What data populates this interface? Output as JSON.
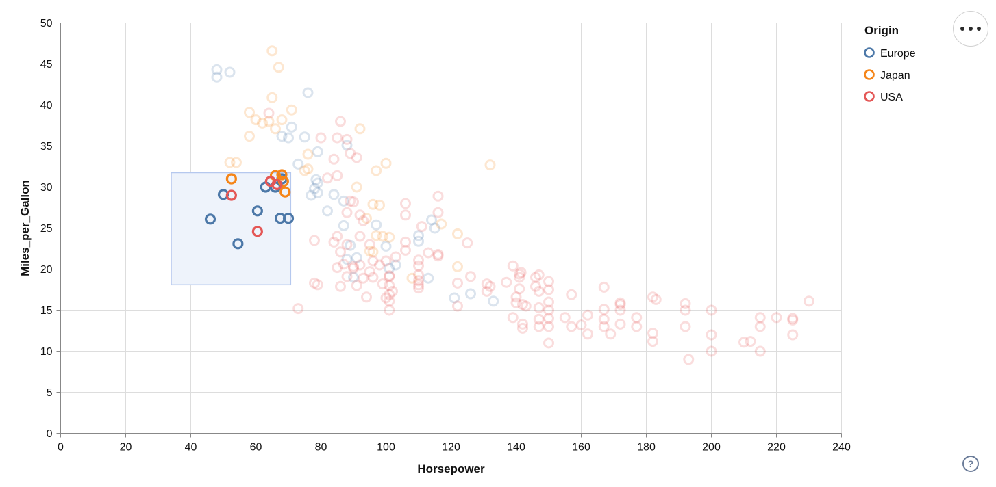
{
  "figure": {
    "x_axis": {
      "title": "Horsepower",
      "ticks": [
        0,
        20,
        40,
        60,
        80,
        100,
        120,
        140,
        160,
        180,
        200,
        220,
        240
      ],
      "range": [
        0,
        240
      ]
    },
    "y_axis": {
      "title": "Miles_per_Gallon",
      "ticks": [
        0,
        5,
        10,
        15,
        20,
        25,
        30,
        35,
        40,
        45,
        50
      ],
      "range": [
        0,
        50
      ]
    },
    "legend": {
      "title": "Origin"
    },
    "grid_color": "#dddddd",
    "axis_color": "#888888",
    "label_color": "#111111",
    "brush": {
      "hp_min": 34,
      "hp_max": 70.7,
      "mpg_min": 18.1,
      "mpg_max": 31.75,
      "fill": "#eef3fb",
      "stroke": "#b5c8ee"
    },
    "faded_opacity": 0.2
  },
  "chart_data": {
    "type": "scatter",
    "title": "",
    "xlabel": "Horsepower",
    "ylabel": "Miles_per_Gallon",
    "xlim": [
      0,
      240
    ],
    "ylim": [
      0,
      50
    ],
    "grid": true,
    "legend_position": "top-right",
    "selection_note": "interval brush over hp 34-70.7, mpg 18.1-31.75; points inside are full color, outside faded",
    "series": [
      {
        "name": "Europe",
        "color": "#4c78a8",
        "selected": [
          [
            46,
            26.1
          ],
          [
            50,
            29.1
          ],
          [
            54.5,
            23.1
          ],
          [
            60.5,
            27.1
          ],
          [
            63,
            30
          ],
          [
            66,
            30
          ],
          [
            68,
            31
          ],
          [
            67.5,
            26.2
          ],
          [
            70,
            26.2
          ]
        ],
        "points": [
          [
            48,
            44.3
          ],
          [
            52,
            44
          ],
          [
            48,
            43.4
          ],
          [
            76,
            41.5
          ],
          [
            71,
            37.3
          ],
          [
            68,
            36.2
          ],
          [
            70,
            36
          ],
          [
            75,
            36.1
          ],
          [
            79,
            34.3
          ],
          [
            88,
            35.1
          ],
          [
            73,
            32.8
          ],
          [
            78.5,
            30.9
          ],
          [
            79,
            30.5
          ],
          [
            78,
            29.8
          ],
          [
            79,
            29.3
          ],
          [
            77,
            29
          ],
          [
            84,
            29.1
          ],
          [
            87,
            28.3
          ],
          [
            82,
            27.1
          ],
          [
            87,
            25.3
          ],
          [
            97,
            25.4
          ],
          [
            100,
            22.8
          ],
          [
            89,
            22.9
          ],
          [
            91,
            21.4
          ],
          [
            88,
            21.2
          ],
          [
            103,
            20.5
          ],
          [
            101,
            20.1
          ],
          [
            90,
            19
          ],
          [
            114,
            26
          ],
          [
            115,
            25
          ],
          [
            110,
            24.1
          ],
          [
            110,
            23.4
          ],
          [
            113,
            18.9
          ],
          [
            121,
            16.5
          ],
          [
            126,
            17
          ],
          [
            133,
            16.1
          ]
        ]
      },
      {
        "name": "Japan",
        "color": "#f58518",
        "selected": [
          [
            52.5,
            31
          ],
          [
            66,
            31.4
          ],
          [
            68,
            31.5
          ],
          [
            68.5,
            30.7
          ],
          [
            69,
            29.4
          ]
        ],
        "points": [
          [
            65,
            46.6
          ],
          [
            67,
            44.6
          ],
          [
            65,
            40.9
          ],
          [
            58,
            39.1
          ],
          [
            60,
            38.2
          ],
          [
            62,
            37.8
          ],
          [
            64,
            38
          ],
          [
            71,
            39.4
          ],
          [
            68,
            38.2
          ],
          [
            66,
            37.1
          ],
          [
            92,
            37.1
          ],
          [
            58,
            36.2
          ],
          [
            52,
            33
          ],
          [
            54,
            33
          ],
          [
            76,
            34
          ],
          [
            75,
            32
          ],
          [
            76,
            32.2
          ],
          [
            97,
            32
          ],
          [
            100,
            32.9
          ],
          [
            132,
            32.7
          ],
          [
            91,
            30
          ],
          [
            96,
            27.9
          ],
          [
            98,
            27.8
          ],
          [
            94,
            26.2
          ],
          [
            117,
            25.5
          ],
          [
            97,
            24.1
          ],
          [
            99,
            24
          ],
          [
            101,
            23.9
          ],
          [
            122,
            24.3
          ],
          [
            95,
            22.2
          ],
          [
            96,
            22.1
          ],
          [
            122,
            20.3
          ],
          [
            108,
            18.9
          ]
        ]
      },
      {
        "name": "USA",
        "color": "#e45756",
        "selected": [
          [
            52.5,
            29
          ],
          [
            64.5,
            30.7
          ],
          [
            66.5,
            30.3
          ],
          [
            60.5,
            24.6
          ]
        ],
        "points": [
          [
            64,
            39
          ],
          [
            86,
            38
          ],
          [
            80,
            36
          ],
          [
            85,
            36
          ],
          [
            88,
            35.8
          ],
          [
            84,
            33.4
          ],
          [
            89,
            34.1
          ],
          [
            91,
            33.6
          ],
          [
            85,
            31.4
          ],
          [
            82,
            31.1
          ],
          [
            89,
            28.3
          ],
          [
            90,
            28.2
          ],
          [
            106,
            28
          ],
          [
            116,
            28.9
          ],
          [
            88,
            26.9
          ],
          [
            92,
            26.6
          ],
          [
            106,
            26.6
          ],
          [
            116,
            26.9
          ],
          [
            93,
            25.9
          ],
          [
            111,
            25.2
          ],
          [
            84,
            23.3
          ],
          [
            86,
            22.1
          ],
          [
            106,
            23.3
          ],
          [
            106,
            22.3
          ],
          [
            113,
            22
          ],
          [
            116,
            21.8
          ],
          [
            125,
            23.2
          ],
          [
            78,
            23.5
          ],
          [
            88,
            23
          ],
          [
            85,
            24
          ],
          [
            92,
            24
          ],
          [
            95,
            23
          ],
          [
            116,
            21.6
          ],
          [
            110,
            21.1
          ],
          [
            110,
            20.4
          ],
          [
            90,
            20.3
          ],
          [
            90,
            20.1
          ],
          [
            85,
            20.2
          ],
          [
            87,
            20.6
          ],
          [
            92,
            20.5
          ],
          [
            96,
            21
          ],
          [
            98,
            20.5
          ],
          [
            100,
            21
          ],
          [
            103,
            21.5
          ],
          [
            101,
            19.2
          ],
          [
            88,
            19.1
          ],
          [
            93,
            18.9
          ],
          [
            95,
            19.7
          ],
          [
            96,
            19
          ],
          [
            101,
            19.1
          ],
          [
            99,
            18.2
          ],
          [
            91,
            18
          ],
          [
            86,
            17.9
          ],
          [
            79,
            18.1
          ],
          [
            78,
            18.3
          ],
          [
            110,
            19.3
          ],
          [
            110,
            18.6
          ],
          [
            110,
            18.1
          ],
          [
            110,
            17.7
          ],
          [
            101,
            18
          ],
          [
            73,
            15.2
          ],
          [
            102,
            17.3
          ],
          [
            100,
            16.5
          ],
          [
            94,
            16.6
          ],
          [
            101,
            16.9
          ],
          [
            101,
            16.1
          ],
          [
            101,
            15
          ],
          [
            126,
            19.1
          ],
          [
            122,
            18.3
          ],
          [
            122,
            15.5
          ],
          [
            131,
            18.2
          ],
          [
            132,
            17.9
          ],
          [
            131,
            17.3
          ],
          [
            137,
            18.4
          ],
          [
            139,
            20.4
          ],
          [
            141.5,
            19.6
          ],
          [
            141,
            19.4
          ],
          [
            141,
            19
          ],
          [
            146,
            19
          ],
          [
            141,
            17.6
          ],
          [
            140,
            16.6
          ],
          [
            140,
            15.9
          ],
          [
            142,
            15.7
          ],
          [
            143,
            15.5
          ],
          [
            139,
            14.1
          ],
          [
            142,
            13.3
          ],
          [
            142,
            12.8
          ],
          [
            147,
            19.3
          ],
          [
            146,
            17.9
          ],
          [
            147,
            17.3
          ],
          [
            147,
            15.3
          ],
          [
            147,
            13.9
          ],
          [
            147,
            13
          ],
          [
            150,
            18.5
          ],
          [
            150,
            17.5
          ],
          [
            150,
            16
          ],
          [
            150,
            15
          ],
          [
            150,
            14
          ],
          [
            150,
            13
          ],
          [
            150,
            11
          ],
          [
            155,
            14.1
          ],
          [
            157,
            16.9
          ],
          [
            157,
            13
          ],
          [
            160,
            13.2
          ],
          [
            162,
            14.4
          ],
          [
            162,
            12.1
          ],
          [
            167,
            17.8
          ],
          [
            167,
            15.1
          ],
          [
            167,
            13.9
          ],
          [
            167,
            13
          ],
          [
            169,
            12.1
          ],
          [
            172,
            15.9
          ],
          [
            172,
            15.7
          ],
          [
            172,
            15
          ],
          [
            172,
            13.3
          ],
          [
            177,
            14.1
          ],
          [
            177,
            13
          ],
          [
            182,
            16.6
          ],
          [
            183,
            16.3
          ],
          [
            182,
            12.2
          ],
          [
            182,
            11.2
          ],
          [
            192,
            15.8
          ],
          [
            192,
            15
          ],
          [
            192,
            13
          ],
          [
            193,
            9
          ],
          [
            200,
            15
          ],
          [
            200,
            12
          ],
          [
            200,
            10
          ],
          [
            210,
            11.1
          ],
          [
            212,
            11.2
          ],
          [
            215,
            14.1
          ],
          [
            215,
            13
          ],
          [
            215,
            10
          ],
          [
            220,
            14.1
          ],
          [
            225,
            14
          ],
          [
            225,
            13.8
          ],
          [
            225,
            12
          ],
          [
            230,
            16.1
          ]
        ]
      }
    ]
  },
  "controls": {
    "menu_icon": "ellipsis-three-dots",
    "help_label": "?"
  }
}
